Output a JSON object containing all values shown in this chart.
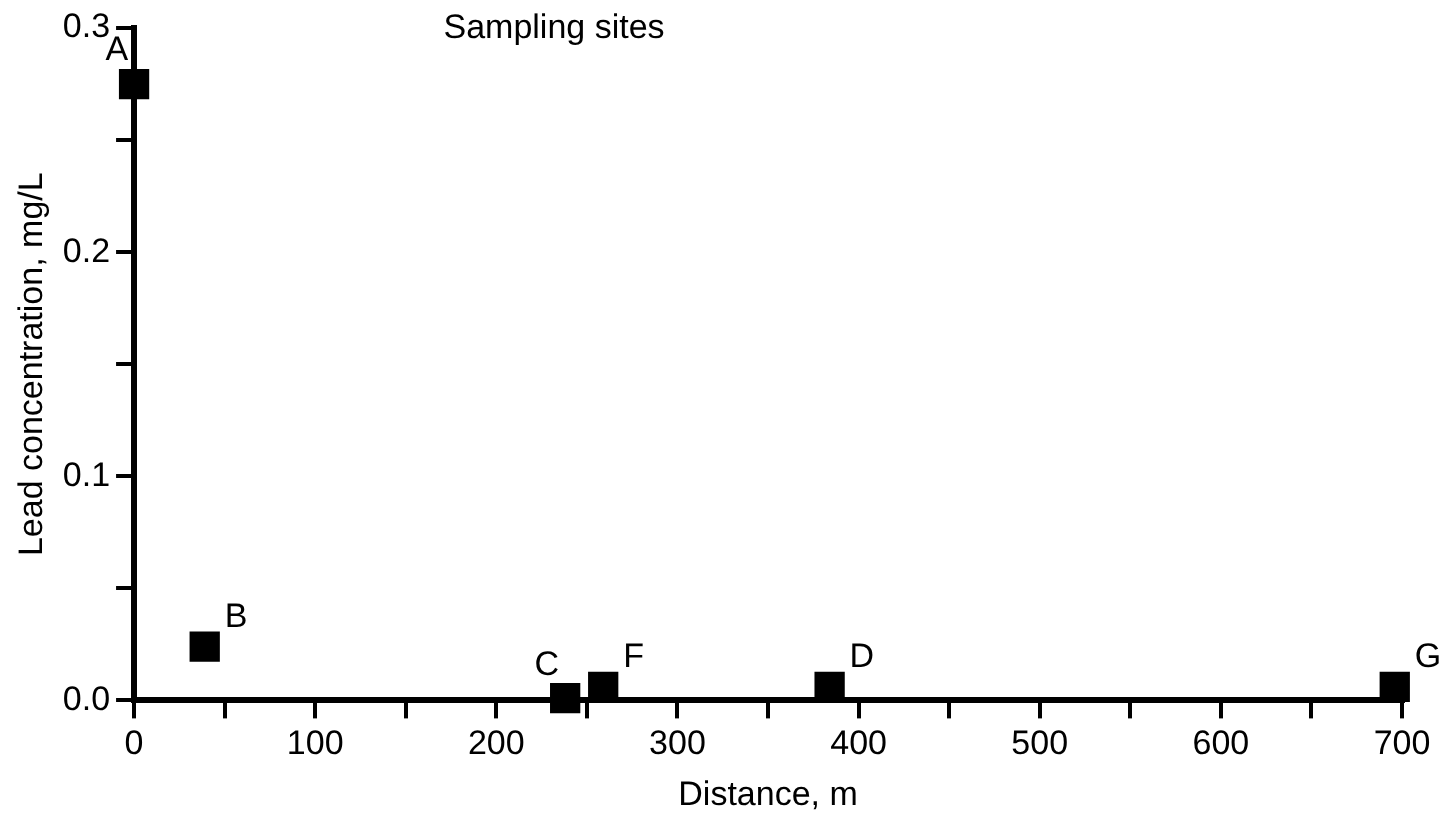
{
  "chart_data": {
    "type": "scatter",
    "title": "Sampling sites",
    "xlabel": "Distance, m",
    "ylabel": "Lead concentration, mg/L",
    "x": [
      0,
      39,
      238,
      259,
      384,
      696
    ],
    "series": [
      {
        "color": "#000000",
        "values": [
          0.275,
          0.024,
          0.001,
          0.006,
          0.006,
          0.006
        ]
      }
    ],
    "annotations": [
      {
        "text": "A",
        "x": 0,
        "y": 0.275
      },
      {
        "text": "B",
        "x": 39,
        "y": 0.024
      },
      {
        "text": "C",
        "x": 238,
        "y": 0.001
      },
      {
        "text": "F",
        "x": 259,
        "y": 0.006
      },
      {
        "text": "D",
        "x": 384,
        "y": 0.006
      },
      {
        "text": "G",
        "x": 696,
        "y": 0.006
      }
    ],
    "xlim": [
      0,
      700
    ],
    "ylim": [
      0,
      0.3
    ],
    "xticks": [
      0,
      {
        "value": 50,
        "label": null
      },
      100,
      {
        "value": 150,
        "label": null
      },
      200,
      {
        "value": 250,
        "label": null
      },
      300,
      {
        "value": 350,
        "label": null
      },
      400,
      {
        "value": 450,
        "label": null
      },
      500,
      {
        "value": 550,
        "label": null
      },
      600,
      {
        "value": 650,
        "label": null
      },
      700
    ],
    "yticks": [
      {
        "value": 0,
        "label": "0.0"
      },
      {
        "value": 0.05,
        "label": null
      },
      0.1,
      {
        "value": 0.15,
        "label": null
      },
      0.2,
      {
        "value": 0.25,
        "label": null
      },
      0.3
    ],
    "grid": false,
    "legend": false,
    "marker": "square"
  }
}
